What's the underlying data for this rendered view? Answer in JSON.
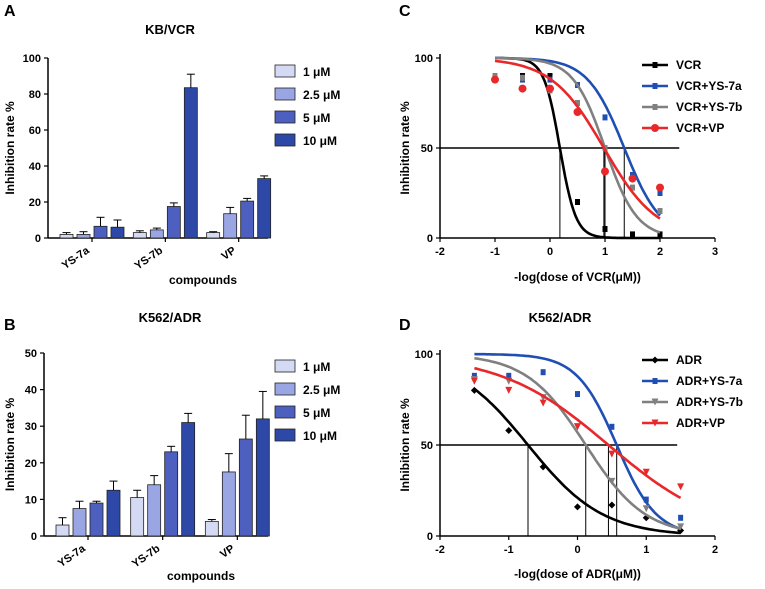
{
  "chart_data": [
    {
      "panel": "A",
      "type": "bar",
      "title": "KB/VCR",
      "xlabel": "compounds",
      "ylabel": "Inhibition rate %",
      "ylim": [
        0,
        100
      ],
      "yticks": [
        0,
        20,
        40,
        60,
        80,
        100
      ],
      "categories": [
        "YS-7a",
        "YS-7b",
        "VP"
      ],
      "legend_position": "top-right",
      "series": [
        {
          "name": "1 μM",
          "color": "#d4d9f4",
          "values": [
            2,
            3,
            3
          ],
          "errors": [
            1,
            1,
            0.5
          ]
        },
        {
          "name": "2.5 μM",
          "color": "#9aa6e3",
          "values": [
            2,
            4.5,
            13.5
          ],
          "errors": [
            1.5,
            1,
            3.5
          ]
        },
        {
          "name": "5 μM",
          "color": "#4d5fbf",
          "values": [
            6.5,
            17.5,
            20.5
          ],
          "errors": [
            5,
            2,
            1.5
          ]
        },
        {
          "name": "10 μM",
          "color": "#2d48a6",
          "values": [
            6,
            83.5,
            33
          ],
          "errors": [
            4,
            7.5,
            1.5
          ]
        }
      ]
    },
    {
      "panel": "B",
      "type": "bar",
      "title": "K562/ADR",
      "xlabel": "compounds",
      "ylabel": "Inhibition rate %",
      "ylim": [
        0,
        50
      ],
      "yticks": [
        0,
        10,
        20,
        30,
        40,
        50
      ],
      "categories": [
        "YS-7a",
        "YS-7b",
        "VP"
      ],
      "legend_position": "top-right",
      "series": [
        {
          "name": "1 μM",
          "color": "#d4d9f4",
          "values": [
            3,
            10.5,
            4
          ],
          "errors": [
            2,
            2,
            0.5
          ]
        },
        {
          "name": "2.5 μM",
          "color": "#9aa6e3",
          "values": [
            7.5,
            14,
            17.5
          ],
          "errors": [
            2,
            2.5,
            5
          ]
        },
        {
          "name": "5 μM",
          "color": "#4d5fbf",
          "values": [
            9,
            23,
            26.5
          ],
          "errors": [
            0.5,
            1.5,
            6.5
          ]
        },
        {
          "name": "10 μM",
          "color": "#2d48a6",
          "values": [
            12.5,
            31,
            32
          ],
          "errors": [
            2.5,
            2.5,
            7.5
          ]
        }
      ]
    },
    {
      "panel": "C",
      "type": "line",
      "title": "KB/VCR",
      "xlabel": "-log(dose of VCR(μM))",
      "ylabel": "Inhibition rate %",
      "xlim": [
        -2,
        3
      ],
      "ylim": [
        0,
        100
      ],
      "xticks": [
        -2,
        -1,
        0,
        1,
        2,
        3
      ],
      "yticks": [
        0,
        50,
        100
      ],
      "legend_position": "top-right",
      "reference_line_y": 50,
      "series": [
        {
          "name": "VCR",
          "color": "#000000",
          "marker": "square",
          "ic50": 0.18,
          "slope": 3.0,
          "x": [
            -1,
            -0.5,
            0,
            0.5,
            1,
            1.5,
            2
          ],
          "y": [
            90,
            90,
            90,
            20,
            5,
            2,
            2
          ]
        },
        {
          "name": "VCR+YS-7a",
          "color": "#1f4fb3",
          "marker": "square",
          "ic50": 1.35,
          "slope": 1.3,
          "x": [
            -1,
            -0.5,
            0,
            0.5,
            1,
            1.5,
            2
          ],
          "y": [
            90,
            88,
            88,
            85,
            67,
            35,
            25
          ]
        },
        {
          "name": "VCR+YS-7b",
          "color": "#808080",
          "marker": "square",
          "ic50": 1.0,
          "slope": 1.5,
          "x": [
            -1,
            -0.5,
            0,
            0.5,
            1,
            1.5,
            2
          ],
          "y": [
            90,
            89,
            82,
            75,
            50,
            28,
            15
          ]
        },
        {
          "name": "VCR+VP",
          "color": "#e8282a",
          "marker": "circle",
          "ic50": 0.98,
          "slope": 0.9,
          "x": [
            -1,
            -0.5,
            0,
            0.5,
            1,
            1.5,
            2
          ],
          "y": [
            88,
            83,
            83,
            70,
            37,
            33,
            28
          ]
        }
      ]
    },
    {
      "panel": "D",
      "type": "line",
      "title": "K562/ADR",
      "xlabel": "-log(dose of ADR(μM))",
      "ylabel": "Inhibition rate %",
      "xlim": [
        -2,
        2
      ],
      "ylim": [
        0,
        100
      ],
      "xticks": [
        -2,
        -1,
        0,
        1,
        2
      ],
      "yticks": [
        0,
        50,
        100
      ],
      "legend_position": "top-right",
      "reference_line_y": 50,
      "series": [
        {
          "name": "ADR",
          "color": "#000000",
          "marker": "diamond",
          "ic50": -0.72,
          "slope": 0.8,
          "x": [
            -1.5,
            -1,
            -0.5,
            0,
            0.5,
            1,
            1.5
          ],
          "y": [
            80,
            58,
            38,
            16,
            17,
            10,
            3
          ]
        },
        {
          "name": "ADR+YS-7a",
          "color": "#1f4fb3",
          "marker": "square",
          "ic50": 0.57,
          "slope": 1.5,
          "x": [
            -1.5,
            -1,
            -0.5,
            0,
            0.5,
            1,
            1.5
          ],
          "y": [
            88,
            88,
            90,
            78,
            60,
            20,
            10
          ]
        },
        {
          "name": "ADR+YS-7b",
          "color": "#808080",
          "marker": "triangle-down",
          "ic50": 0.12,
          "slope": 1.0,
          "x": [
            -1.5,
            -1,
            -0.5,
            0,
            0.5,
            1,
            1.5
          ],
          "y": [
            86,
            85,
            76,
            60,
            30,
            15,
            5
          ]
        },
        {
          "name": "ADR+VP",
          "color": "#e8282a",
          "marker": "triangle-down",
          "ic50": 0.45,
          "slope": 0.55,
          "x": [
            -1.5,
            -1,
            -0.5,
            0,
            0.5,
            1,
            1.5
          ],
          "y": [
            85,
            80,
            73,
            60,
            45,
            35,
            27
          ]
        }
      ]
    }
  ]
}
